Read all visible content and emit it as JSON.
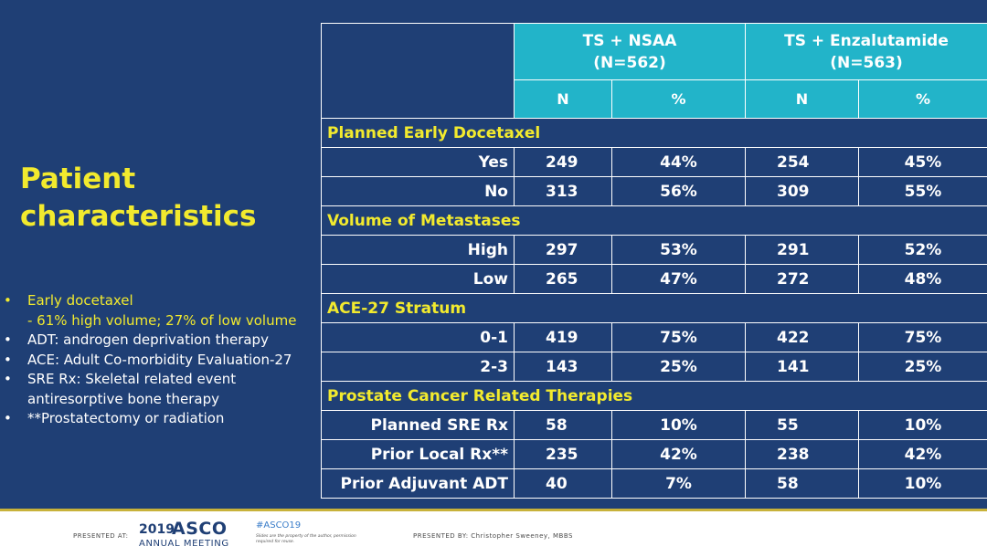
{
  "left_panel": {
    "title_line1": "Patient",
    "title_line2": "characteristics",
    "notes": [
      {
        "main": "Early docetaxel",
        "sub": "- 61% high volume; 27% of low volume"
      },
      {
        "main": "ADT: androgen deprivation therapy"
      },
      {
        "main": "ACE: Adult Co-morbidity Evaluation-27"
      },
      {
        "main": "SRE Rx: Skeletal related event antiresorptive bone therapy"
      },
      {
        "main": "**Prostatectomy or radiation"
      }
    ]
  },
  "table": {
    "groups": [
      {
        "line1": "TS + NSAA",
        "line2": "(N=562)"
      },
      {
        "line1": "TS + Enzalutamide",
        "line2": "(N=563)"
      }
    ],
    "subheaders": [
      "N",
      "%",
      "N",
      "%"
    ],
    "sections": [
      {
        "title": "Planned Early Docetaxel",
        "rows": [
          {
            "label": "Yes",
            "values": [
              "249",
              "44%",
              "254",
              "45%"
            ]
          },
          {
            "label": "No",
            "values": [
              "313",
              "56%",
              "309",
              "55%"
            ]
          }
        ]
      },
      {
        "title": "Volume of Metastases",
        "rows": [
          {
            "label": "High",
            "values": [
              "297",
              "53%",
              "291",
              "52%"
            ]
          },
          {
            "label": "Low",
            "values": [
              "265",
              "47%",
              "272",
              "48%"
            ]
          }
        ]
      },
      {
        "title": "ACE-27 Stratum",
        "rows": [
          {
            "label": "0-1",
            "values": [
              "419",
              "75%",
              "422",
              "75%"
            ]
          },
          {
            "label": "2-3",
            "values": [
              "143",
              "25%",
              "141",
              "25%"
            ]
          }
        ]
      },
      {
        "title": "Prostate Cancer Related Therapies",
        "rows": [
          {
            "label": "Planned SRE Rx",
            "values": [
              "58",
              "10%",
              "55",
              "10%"
            ]
          },
          {
            "label": "Prior Local Rx**",
            "values": [
              "235",
              "42%",
              "238",
              "42%"
            ]
          },
          {
            "label": "Prior Adjuvant ADT",
            "values": [
              "40",
              "7%",
              "58",
              "10%"
            ]
          }
        ]
      }
    ]
  },
  "footer": {
    "presented_at": "PRESENTED AT:",
    "year": "2019",
    "org": "ASCO",
    "meeting": "ANNUAL MEETING",
    "hashtag": "#ASCO19",
    "fine_print": "Slides are the property of the author, permission required for reuse.",
    "presented_by": "PRESENTED BY: Christopher Sweeney, MBBS",
    "accent_color": "#c8b23a"
  },
  "colors": {
    "background": "#1f3f75",
    "header": "#22b4c9",
    "highlight": "#f2ea2e"
  }
}
